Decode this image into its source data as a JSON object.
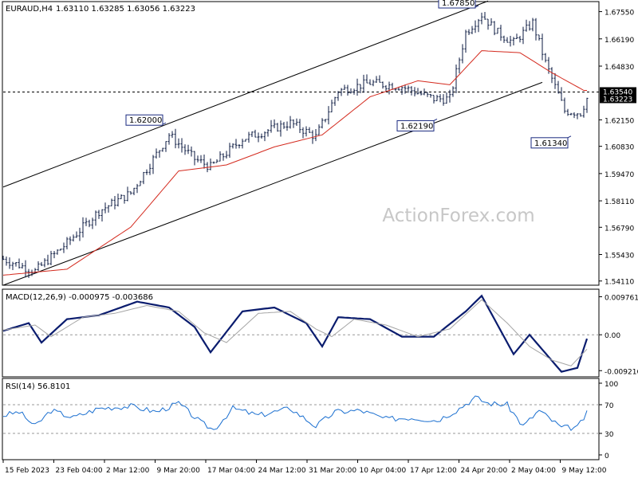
{
  "header": {
    "symbol": "EURAUD,H4",
    "ohlc": "1.63110 1.63285 1.63056 1.63223"
  },
  "watermark": "ActionForex.com",
  "colors": {
    "background": "#ffffff",
    "bar": "#0b1a40",
    "ma": "#d42a1e",
    "channel": "#000000",
    "macd_main": "#0a1c6e",
    "macd_signal": "#a5a5a5",
    "rsi": "#1a6fd0",
    "label_border": "#1a2a80",
    "price_tag": "#000000",
    "watermark": "#c7c7c7"
  },
  "chart_data": [
    {
      "type": "ohlc",
      "title": "EURAUD,H4",
      "price_axis": [
        "1.67550",
        "1.66190",
        "1.64830",
        "1.63540",
        "1.63223",
        "1.62150",
        "1.60830",
        "1.59470",
        "1.58110",
        "1.56790",
        "1.55430",
        "1.54110"
      ],
      "ylim": [
        1.539,
        1.6805
      ],
      "current_price": "1.63223",
      "level_line": {
        "value": 1.6354,
        "label": "1.63540",
        "style": "dashed"
      },
      "annotations": [
        {
          "label": "1.62000",
          "date_index": 51,
          "value": 1.62
        },
        {
          "label": "1.67850",
          "date_index": 149,
          "value": 1.6785
        },
        {
          "label": "1.62190",
          "date_index": 136,
          "value": 1.6219
        },
        {
          "label": "1.61340",
          "date_index": 178,
          "value": 1.6134
        }
      ],
      "channel": {
        "upper": [
          [
            0,
            1.588
          ],
          [
            152,
            1.6808
          ]
        ],
        "lower": [
          [
            0,
            1.539
          ],
          [
            169,
            1.6402
          ]
        ]
      },
      "moving_average_points": [
        [
          0,
          1.544
        ],
        [
          20,
          1.547
        ],
        [
          40,
          1.568
        ],
        [
          55,
          1.596
        ],
        [
          70,
          1.599
        ],
        [
          85,
          1.608
        ],
        [
          100,
          1.614
        ],
        [
          115,
          1.633
        ],
        [
          130,
          1.641
        ],
        [
          140,
          1.639
        ],
        [
          150,
          1.656
        ],
        [
          162,
          1.655
        ],
        [
          172,
          1.645
        ],
        [
          182,
          1.6362
        ]
      ],
      "price_path": [
        [
          0,
          1.552
        ],
        [
          10,
          1.546
        ],
        [
          20,
          1.56
        ],
        [
          30,
          1.576
        ],
        [
          40,
          1.585
        ],
        [
          52,
          1.614
        ],
        [
          60,
          1.602
        ],
        [
          65,
          1.598
        ],
        [
          75,
          1.612
        ],
        [
          90,
          1.62
        ],
        [
          98,
          1.613
        ],
        [
          105,
          1.636
        ],
        [
          115,
          1.64
        ],
        [
          125,
          1.638
        ],
        [
          135,
          1.632
        ],
        [
          140,
          1.632
        ],
        [
          145,
          1.665
        ],
        [
          150,
          1.674
        ],
        [
          155,
          1.665
        ],
        [
          160,
          1.66
        ],
        [
          166,
          1.67
        ],
        [
          170,
          1.65
        ],
        [
          176,
          1.626
        ],
        [
          181,
          1.625
        ],
        [
          183,
          1.6322
        ]
      ]
    },
    {
      "type": "line",
      "title": "MACD(12,26,9) -0.000975 -0.003686",
      "y_ticks": [
        "0.009761",
        "0.00",
        "-0.009216"
      ],
      "ylim": [
        -0.0108,
        0.0117
      ],
      "zero_line": true,
      "series": [
        {
          "role": "main",
          "points": [
            [
              0,
              0.001
            ],
            [
              8,
              0.003
            ],
            [
              12,
              -0.002
            ],
            [
              20,
              0.004
            ],
            [
              30,
              0.005
            ],
            [
              42,
              0.0085
            ],
            [
              52,
              0.007
            ],
            [
              60,
              0.002
            ],
            [
              65,
              -0.0045
            ],
            [
              75,
              0.006
            ],
            [
              85,
              0.007
            ],
            [
              95,
              0.003
            ],
            [
              100,
              -0.003
            ],
            [
              105,
              0.0045
            ],
            [
              115,
              0.004
            ],
            [
              125,
              -0.0005
            ],
            [
              135,
              -0.0005
            ],
            [
              145,
              0.006
            ],
            [
              150,
              0.01
            ],
            [
              160,
              -0.005
            ],
            [
              165,
              0.0
            ],
            [
              175,
              -0.0095
            ],
            [
              180,
              -0.0085
            ],
            [
              183,
              -0.001
            ]
          ]
        },
        {
          "role": "signal",
          "points": [
            [
              0,
              0.0012
            ],
            [
              10,
              0.0025
            ],
            [
              15,
              -0.0005
            ],
            [
              25,
              0.0045
            ],
            [
              35,
              0.0055
            ],
            [
              45,
              0.0075
            ],
            [
              55,
              0.006
            ],
            [
              63,
              0.0005
            ],
            [
              70,
              -0.002
            ],
            [
              80,
              0.0055
            ],
            [
              90,
              0.006
            ],
            [
              98,
              0.0015
            ],
            [
              103,
              -0.0005
            ],
            [
              110,
              0.004
            ],
            [
              120,
              0.0025
            ],
            [
              130,
              -0.0005
            ],
            [
              140,
              0.0015
            ],
            [
              150,
              0.009
            ],
            [
              158,
              0.003
            ],
            [
              165,
              -0.003
            ],
            [
              172,
              -0.0065
            ],
            [
              178,
              -0.008
            ],
            [
              183,
              -0.0037
            ]
          ]
        }
      ]
    },
    {
      "type": "line",
      "title": "RSI(14) 56.8101",
      "y_ticks": [
        "100",
        "70",
        "30",
        "0"
      ],
      "ylim": [
        0,
        100
      ],
      "levels": [
        70,
        30
      ],
      "series": [
        {
          "role": "rsi",
          "points": [
            [
              0,
              55
            ],
            [
              5,
              60
            ],
            [
              10,
              40
            ],
            [
              15,
              62
            ],
            [
              22,
              52
            ],
            [
              30,
              65
            ],
            [
              40,
              68
            ],
            [
              48,
              60
            ],
            [
              55,
              72
            ],
            [
              62,
              45
            ],
            [
              66,
              35
            ],
            [
              72,
              65
            ],
            [
              80,
              55
            ],
            [
              90,
              65
            ],
            [
              98,
              40
            ],
            [
              104,
              60
            ],
            [
              112,
              62
            ],
            [
              120,
              50
            ],
            [
              128,
              52
            ],
            [
              136,
              48
            ],
            [
              142,
              62
            ],
            [
              148,
              80
            ],
            [
              152,
              72
            ],
            [
              158,
              70
            ],
            [
              163,
              40
            ],
            [
              168,
              62
            ],
            [
              175,
              38
            ],
            [
              180,
              38
            ],
            [
              183,
              58
            ]
          ]
        }
      ]
    }
  ],
  "time_axis": [
    "15 Feb 2023",
    "23 Feb 04:00",
    "2 Mar 12:00",
    "9 Mar 20:00",
    "17 Mar 04:00",
    "24 Mar 12:00",
    "31 Mar 20:00",
    "10 Apr 04:00",
    "17 Apr 12:00",
    "24 Apr 20:00",
    "2 May 04:00",
    "9 May 12:00"
  ]
}
